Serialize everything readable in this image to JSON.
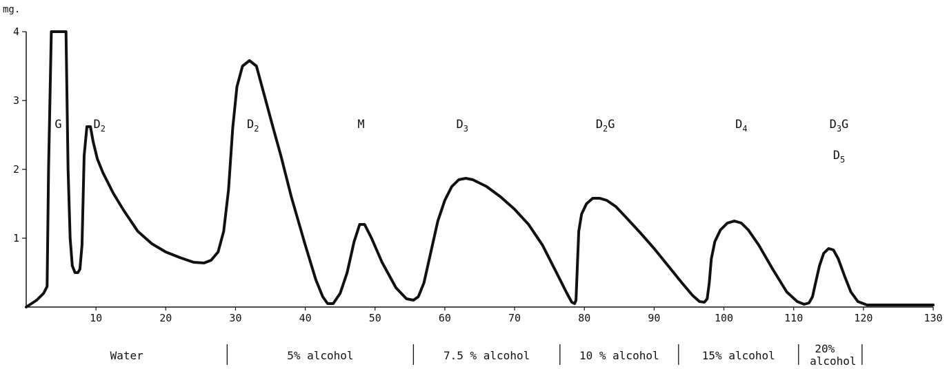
{
  "chart_data": {
    "type": "line",
    "title": "",
    "xlabel": "",
    "ylabel": "mg.",
    "xlim": [
      0,
      130
    ],
    "ylim": [
      0,
      4
    ],
    "grid": false,
    "x_ticks": [
      "10",
      "20",
      "30",
      "40",
      "50",
      "60",
      "70",
      "80",
      "90",
      "100",
      "110",
      "120",
      "130"
    ],
    "y_ticks": [
      "1",
      "2",
      "3",
      "4"
    ],
    "series": [
      {
        "x": [
          0,
          1.5,
          2.5,
          3,
          3.2,
          3.6,
          5.7,
          6.0,
          6.3,
          6.6,
          7.0,
          7.4,
          7.7,
          8.0,
          8.3,
          8.7,
          9.2,
          9.6,
          10.2,
          11,
          12.5,
          14,
          16,
          18,
          20,
          22,
          24,
          25.5,
          26.5,
          27.5,
          28.3,
          29,
          29.6,
          30.2,
          31,
          32,
          33,
          33.8,
          34.6,
          35.4,
          36.5,
          38,
          40,
          41.5,
          42.5,
          43.2,
          44,
          45,
          46,
          47,
          47.8,
          48.5,
          49.5,
          51,
          53,
          54.5,
          55.5,
          56.2,
          57,
          58,
          59,
          60,
          61,
          62,
          63,
          64,
          66,
          68,
          70,
          72,
          74,
          76,
          77.5,
          78.2,
          78.6,
          78.8,
          79.0,
          79.2,
          79.6,
          80.3,
          81.2,
          82.2,
          83.2,
          84.5,
          86,
          88,
          90,
          92,
          94,
          95.5,
          96.5,
          97.2,
          97.6,
          97.9,
          98.2,
          98.7,
          99.5,
          100.5,
          101.5,
          102.5,
          103.5,
          105,
          107,
          109,
          110.5,
          111.5,
          112.2,
          112.7,
          113.2,
          113.7,
          114.3,
          115,
          115.7,
          116.4,
          117.3,
          118.2,
          119.2,
          120.5,
          123,
          126,
          128,
          130
        ],
        "y": [
          0,
          0.1,
          0.2,
          0.3,
          2.0,
          4.0,
          4.0,
          2.0,
          1.0,
          0.6,
          0.5,
          0.5,
          0.55,
          0.9,
          2.2,
          2.62,
          2.62,
          2.4,
          2.15,
          1.95,
          1.65,
          1.4,
          1.1,
          0.92,
          0.8,
          0.72,
          0.65,
          0.64,
          0.68,
          0.8,
          1.1,
          1.7,
          2.6,
          3.2,
          3.5,
          3.58,
          3.5,
          3.2,
          2.9,
          2.6,
          2.2,
          1.6,
          0.9,
          0.4,
          0.15,
          0.05,
          0.05,
          0.2,
          0.5,
          0.95,
          1.2,
          1.2,
          1.0,
          0.65,
          0.28,
          0.12,
          0.1,
          0.15,
          0.35,
          0.8,
          1.25,
          1.55,
          1.75,
          1.85,
          1.87,
          1.85,
          1.75,
          1.6,
          1.42,
          1.2,
          0.9,
          0.5,
          0.2,
          0.07,
          0.05,
          0.1,
          0.6,
          1.1,
          1.35,
          1.5,
          1.58,
          1.58,
          1.55,
          1.46,
          1.3,
          1.08,
          0.85,
          0.6,
          0.35,
          0.17,
          0.08,
          0.07,
          0.12,
          0.35,
          0.7,
          0.95,
          1.12,
          1.22,
          1.25,
          1.22,
          1.12,
          0.9,
          0.55,
          0.22,
          0.08,
          0.04,
          0.06,
          0.15,
          0.38,
          0.6,
          0.78,
          0.85,
          0.83,
          0.7,
          0.45,
          0.22,
          0.08,
          0.03,
          0.03,
          0.03,
          0.03,
          0.03
        ]
      }
    ],
    "annotations": [
      {
        "text": "G",
        "x": 4.6,
        "y": 2.6
      },
      {
        "text": "D",
        "sub": "2",
        "x": 10.5,
        "y": 2.6
      },
      {
        "text": "D",
        "sub": "2",
        "x": 32.5,
        "y": 2.6
      },
      {
        "text": "M",
        "x": 48,
        "y": 2.6
      },
      {
        "text": "D",
        "sub": "3",
        "x": 62.5,
        "y": 2.6
      },
      {
        "text": "D",
        "sub": "2",
        "suffix": "G",
        "x": 83,
        "y": 2.6
      },
      {
        "text": "D",
        "sub": "4",
        "x": 102.5,
        "y": 2.6
      },
      {
        "text": "D",
        "sub": "3",
        "suffix": "G",
        "x": 116.5,
        "y": 2.6
      },
      {
        "text": "D",
        "sub": "5",
        "x": 116.5,
        "y": 2.15
      }
    ],
    "solvent_bands": [
      {
        "label": "Water",
        "start": 0,
        "end": 28.8
      },
      {
        "label": "5% alcohol",
        "start": 28.8,
        "end": 55.5
      },
      {
        "label": "7.5 % alcohol",
        "start": 55.5,
        "end": 76.5
      },
      {
        "label": "10 % alcohol",
        "start": 76.5,
        "end": 93.5
      },
      {
        "label": "15% alcohol",
        "start": 93.5,
        "end": 110.7
      },
      {
        "label": "20%",
        "label2": "alcohol",
        "start": 110.7,
        "end": 119.8
      }
    ]
  }
}
